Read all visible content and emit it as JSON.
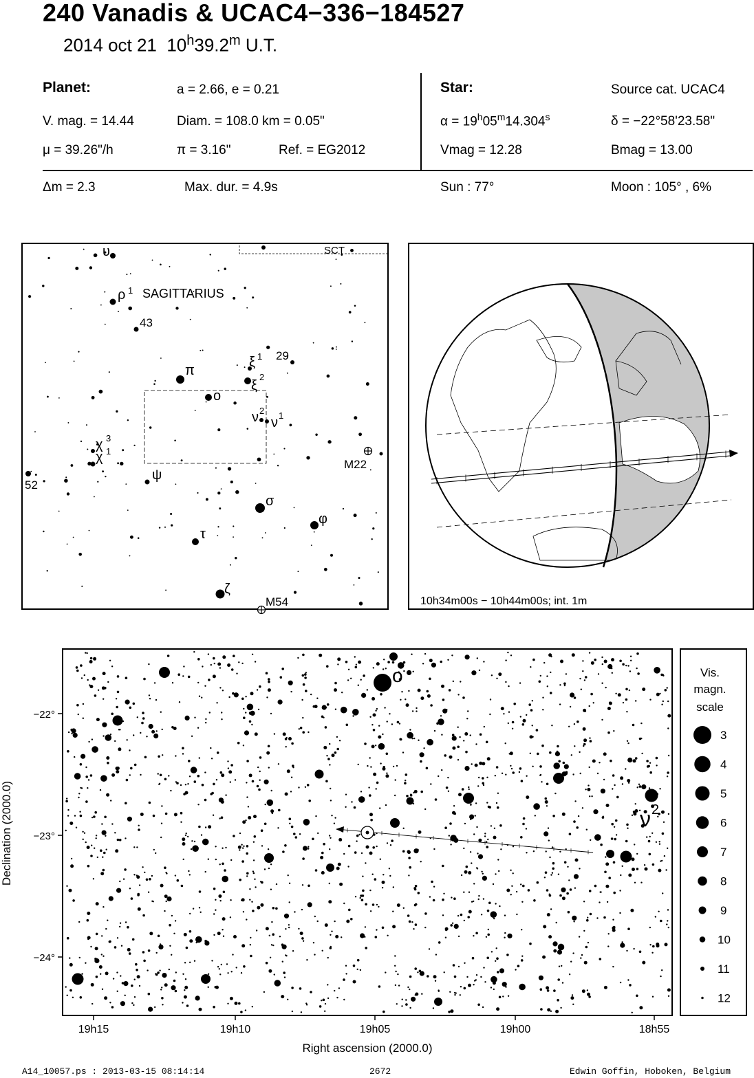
{
  "header": {
    "title": "240 Vanadis  &  UCAC4−336−184527",
    "date": "2014 oct 21",
    "time_h": "10",
    "time_hsup": "h",
    "time_m": "39.2",
    "time_msup": "m",
    "time_tail": "U.T."
  },
  "planet": {
    "label": "Planet:",
    "orbit": "a = 2.66, e = 0.21",
    "vmag": "V. mag. = 14.44",
    "diam": "Diam. = 108.0 km = 0.05\"",
    "mu": "μ =  39.26\"/h",
    "pi": "π =  3.16\"",
    "ref": "Ref. = EG2012"
  },
  "star": {
    "label": "Star:",
    "source": "Source cat.  UCAC4",
    "alpha_pre": "α = 19",
    "alpha_h": "h",
    "alpha_mid": "05",
    "alpha_m": "m",
    "alpha_val": "14.304",
    "alpha_s": "s",
    "delta": "δ = −22°58'23.58\"",
    "vmag": "Vmag = 12.28",
    "bmag": "Bmag = 13.00"
  },
  "event": {
    "dm": "Δm = 2.3",
    "maxdur": "Max. dur. = 4.9s",
    "sun": "Sun :  77°",
    "moon": "Moon : 105° ,  6%"
  },
  "finder": {
    "constellation": "SAGITTARIUS",
    "boundary_label": "SCT",
    "labels": [
      "υ",
      "ρ",
      "1",
      "43",
      "29",
      "ξ",
      "1",
      "ξ",
      "2",
      "π",
      "o",
      "ν",
      "2",
      "ν",
      "1",
      "χ",
      "3",
      "χ",
      "1",
      "52",
      "ψ",
      "M22",
      "σ",
      "φ",
      "τ",
      "ζ",
      "M54"
    ]
  },
  "globe": {
    "caption": "10h34m00s − 10h44m00s; int.  1m"
  },
  "chart_data": {
    "type": "scatter",
    "xlabel": "Right ascension (2000.0)",
    "ylabel": "Declination (2000.0)",
    "x_ticks": [
      "19h15",
      "19h10",
      "19h05",
      "19h00",
      "18h55"
    ],
    "y_ticks": [
      "−22°",
      "−23°",
      "−24°"
    ],
    "star_labels": [
      "o",
      "ν",
      "2"
    ],
    "path": {
      "from": [
        "18h57m06s",
        "−23°07.5'"
      ],
      "to": [
        "19h04m54s",
        "−22°57.5'"
      ]
    },
    "legend": {
      "title_lines": [
        "Vis.",
        "magn.",
        "scale"
      ],
      "magnitudes": [
        "3",
        "4",
        "5",
        "6",
        "7",
        "8",
        "9",
        "10",
        "11",
        "12"
      ]
    }
  },
  "footer": {
    "file": "A14_10057.ps : 2013-03-15 08:14:14",
    "page": "2672",
    "author": "Edwin Goffin, Hoboken, Belgium"
  }
}
